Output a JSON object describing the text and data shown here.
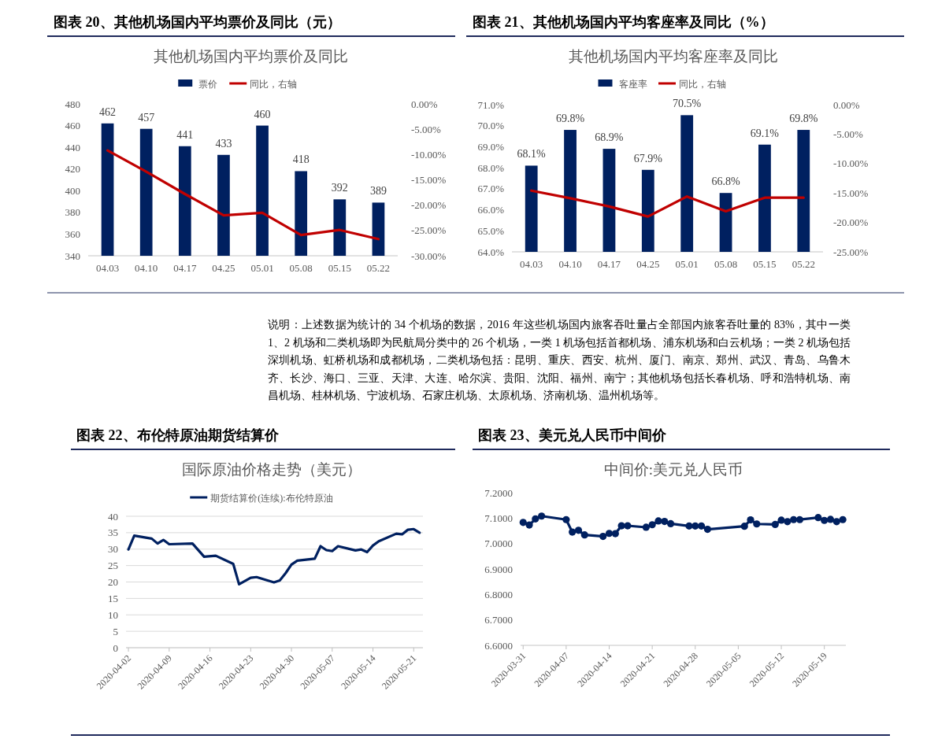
{
  "chart_data": [
    {
      "type": "bar",
      "title": "图表 20、其他机场国内平均票价及同比（元）",
      "subtitle": "其他机场国内平均票价及同比",
      "categories": [
        "04.03",
        "04.10",
        "04.17",
        "04.25",
        "05.01",
        "05.08",
        "05.15",
        "05.22"
      ],
      "series": [
        {
          "name": "票价",
          "color": "#002060",
          "values": [
            462,
            457,
            441,
            433,
            460,
            418,
            392,
            389
          ],
          "value_labels": [
            "462",
            "457",
            "441",
            "433",
            "460",
            "418",
            "392",
            "389"
          ]
        },
        {
          "name": "同比，右轴",
          "type": "line",
          "axis": "y2",
          "color": "#c00000",
          "values": [
            -9.2,
            -13.4,
            -17.8,
            -22.0,
            -21.5,
            -25.9,
            -24.9,
            -26.7
          ]
        }
      ],
      "ylim": [
        340,
        480
      ],
      "yticks": [
        340,
        360,
        380,
        400,
        420,
        440,
        460,
        480
      ],
      "y2lim": [
        -30,
        0
      ],
      "y2ticks": [
        {
          "value": 0,
          "label": "0.00%"
        },
        {
          "value": -5,
          "label": "-5.00%"
        },
        {
          "value": -10,
          "label": "-10.00%"
        },
        {
          "value": -15,
          "label": "-15.00%"
        },
        {
          "value": -20,
          "label": "-20.00%"
        },
        {
          "value": -25,
          "label": "-25.00%"
        },
        {
          "value": -30,
          "label": "-30.00%"
        }
      ],
      "legend": "top"
    },
    {
      "type": "bar",
      "title": "图表 21、其他机场国内平均客座率及同比（%）",
      "subtitle": "其他机场国内平均客座率及同比",
      "categories": [
        "04.03",
        "04.10",
        "04.17",
        "04.25",
        "05.01",
        "05.08",
        "05.15",
        "05.22"
      ],
      "series": [
        {
          "name": "客座率",
          "color": "#002060",
          "values": [
            68.1,
            69.8,
            68.9,
            67.9,
            70.5,
            66.8,
            69.1,
            69.8
          ],
          "value_labels": [
            "68.1%",
            "69.8%",
            "68.9%",
            "67.9%",
            "70.5%",
            "66.8%",
            "69.1%",
            "69.8%"
          ]
        },
        {
          "name": "同比，右轴",
          "type": "line",
          "axis": "y2",
          "color": "#c00000",
          "values": [
            -14.6,
            -15.9,
            -17.3,
            -19.0,
            -15.6,
            -18.1,
            -15.8,
            -15.8
          ]
        }
      ],
      "ylim": [
        64,
        71
      ],
      "yticks": [
        {
          "value": 64,
          "label": "64.0%"
        },
        {
          "value": 65,
          "label": "65.0%"
        },
        {
          "value": 66,
          "label": "66.0%"
        },
        {
          "value": 67,
          "label": "67.0%"
        },
        {
          "value": 68,
          "label": "68.0%"
        },
        {
          "value": 69,
          "label": "69.0%"
        },
        {
          "value": 70,
          "label": "70.0%"
        },
        {
          "value": 71,
          "label": "71.0%"
        }
      ],
      "y2lim": [
        -25,
        0
      ],
      "y2ticks": [
        {
          "value": 0,
          "label": "0.00%"
        },
        {
          "value": -5,
          "label": "-5.00%"
        },
        {
          "value": -10,
          "label": "-10.00%"
        },
        {
          "value": -15,
          "label": "-15.00%"
        },
        {
          "value": -20,
          "label": "-20.00%"
        },
        {
          "value": -25,
          "label": "-25.00%"
        }
      ],
      "legend": "top"
    },
    {
      "type": "other",
      "annotations": [
        "说明：上述数据为统计的 34 个机场的数据，2016 年这些机场国内旅客吞吐量占全部国内旅客吞吐量的 83%，其中一类 1、2 机场和二类机场即为民航局分类中的 26 个机场，一类 1 机场包括首都机场、浦东机场和白云机场；一类 2 机场包括深圳机场、虹桥机场和成都机场，二类机场包括：昆明、重庆、西安、杭州、厦门、南京、郑州、武汉、青岛、乌鲁木齐、长沙、海口、三亚、天津、大连、哈尔滨、贵阳、沈阳、福州、南宁；其他机场包括长春机场、呼和浩特机场、南昌机场、桂林机场、宁波机场、石家庄机场、太原机场、济南机场、温州机场等。"
      ]
    },
    {
      "type": "line",
      "title": "图表 22、布伦特原油期货结算价",
      "subtitle": "国际原油价格走势（美元）",
      "x": [
        "2020-04-02",
        "2020-04-03",
        "2020-04-06",
        "2020-04-07",
        "2020-04-08",
        "2020-04-09",
        "2020-04-13",
        "2020-04-15",
        "2020-04-17",
        "2020-04-20",
        "2020-04-21",
        "2020-04-23",
        "2020-04-24",
        "2020-04-27",
        "2020-04-28",
        "2020-04-29",
        "2020-04-30",
        "2020-05-01",
        "2020-05-04",
        "2020-05-05",
        "2020-05-06",
        "2020-05-07",
        "2020-05-08",
        "2020-05-11",
        "2020-05-12",
        "2020-05-13",
        "2020-05-14",
        "2020-05-15",
        "2020-05-18",
        "2020-05-19",
        "2020-05-20",
        "2020-05-21",
        "2020-05-22"
      ],
      "series": [
        {
          "name": "期货结算价(连续):布伦特原油",
          "color": "#002060",
          "values": [
            29.9,
            34.1,
            33.2,
            31.7,
            32.8,
            31.5,
            31.7,
            27.7,
            28.0,
            25.5,
            19.3,
            21.3,
            21.5,
            19.9,
            20.5,
            22.7,
            25.3,
            26.5,
            27.1,
            30.9,
            29.7,
            29.4,
            30.9,
            29.6,
            29.9,
            29.1,
            31.1,
            32.4,
            34.7,
            34.5,
            35.9,
            36.1,
            35.0
          ]
        }
      ],
      "xlim": [
        "2020-04-01T14:00",
        "2020-05-22T14:00"
      ],
      "xticks": [
        "2020-04-02",
        "2020-04-09",
        "2020-04-16",
        "2020-04-23",
        "2020-04-30",
        "2020-05-07",
        "2020-05-14",
        "2020-05-21"
      ],
      "ylim": [
        0,
        40
      ],
      "yticks": [
        0,
        5,
        10,
        15,
        20,
        25,
        30,
        35,
        40
      ],
      "grid": "y",
      "legend": "top"
    },
    {
      "type": "line",
      "title": "图表 23、美元兑人民币中间价",
      "subtitle": "中间价:美元兑人民币",
      "x": [
        "2020-03-31",
        "2020-04-01",
        "2020-04-02",
        "2020-04-03",
        "2020-04-07",
        "2020-04-08",
        "2020-04-09",
        "2020-04-10",
        "2020-04-13",
        "2020-04-14",
        "2020-04-15",
        "2020-04-16",
        "2020-04-17",
        "2020-04-20",
        "2020-04-21",
        "2020-04-22",
        "2020-04-23",
        "2020-04-24",
        "2020-04-27",
        "2020-04-28",
        "2020-04-29",
        "2020-04-30",
        "2020-05-06",
        "2020-05-07",
        "2020-05-08",
        "2020-05-11",
        "2020-05-12",
        "2020-05-13",
        "2020-05-14",
        "2020-05-15",
        "2020-05-18",
        "2020-05-19",
        "2020-05-20",
        "2020-05-21",
        "2020-05-22"
      ],
      "series": [
        {
          "color": "#002060",
          "values": [
            7.083,
            7.073,
            7.097,
            7.108,
            7.094,
            7.045,
            7.052,
            7.034,
            7.028,
            7.04,
            7.039,
            7.07,
            7.07,
            7.064,
            7.074,
            7.089,
            7.087,
            7.078,
            7.069,
            7.069,
            7.069,
            7.056,
            7.068,
            7.093,
            7.077,
            7.075,
            7.092,
            7.086,
            7.094,
            7.094,
            7.102,
            7.091,
            7.095,
            7.086,
            7.094
          ]
        }
      ],
      "xlim": [
        "2020-03-30T14:00",
        "2020-05-22T12:00"
      ],
      "xticks": [
        "2020-03-31",
        "2020-04-07",
        "2020-04-14",
        "2020-04-21",
        "2020-04-28",
        "2020-05-05",
        "2020-05-12",
        "2020-05-19"
      ],
      "ylim": [
        6.6,
        7.2
      ],
      "yticks": [
        {
          "value": 6.6,
          "label": "6.6000"
        },
        {
          "value": 6.7,
          "label": "6.7000"
        },
        {
          "value": 6.8,
          "label": "6.8000"
        },
        {
          "value": 6.9,
          "label": "6.9000"
        },
        {
          "value": 7.0,
          "label": "7.0000"
        },
        {
          "value": 7.1,
          "label": "7.1000"
        },
        {
          "value": 7.2,
          "label": "7.2000"
        }
      ],
      "marker": "circle"
    }
  ]
}
